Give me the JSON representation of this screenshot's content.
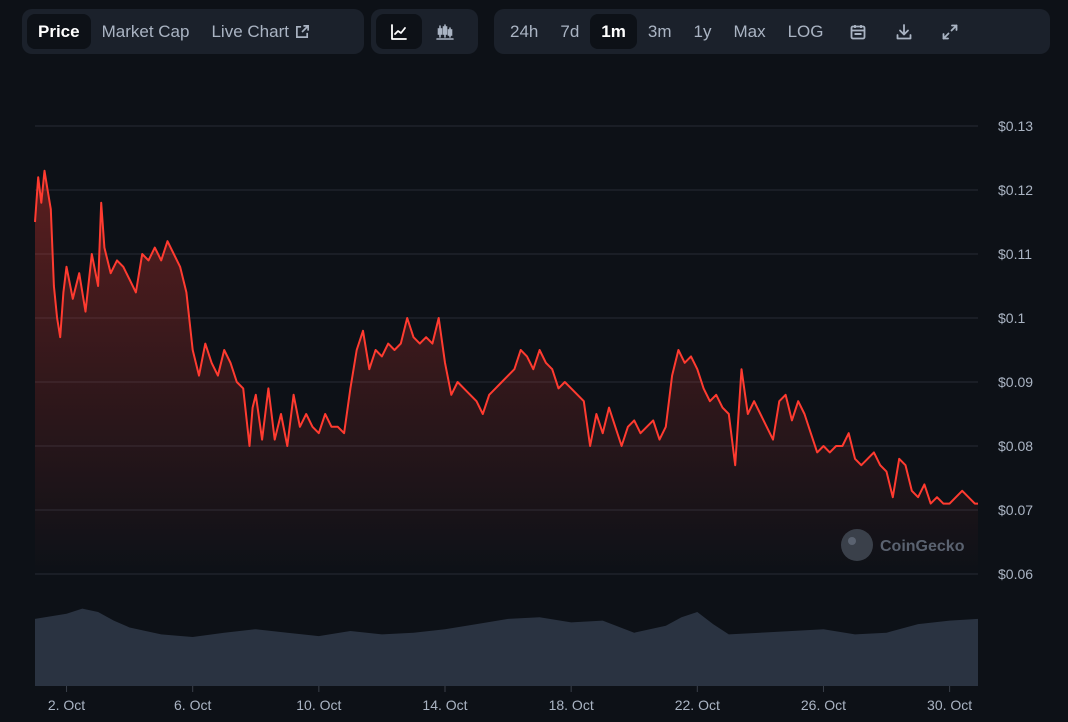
{
  "toolbar": {
    "metric_tabs": [
      {
        "label": "Price",
        "active": true
      },
      {
        "label": "Market Cap",
        "active": false
      },
      {
        "label": "Live Chart",
        "active": false
      }
    ],
    "chart_type_buttons": [
      {
        "icon": "line-chart-icon",
        "active": true
      },
      {
        "icon": "candlestick-chart-icon",
        "active": false
      }
    ],
    "range_tabs": [
      {
        "label": "24h",
        "active": false
      },
      {
        "label": "7d",
        "active": false
      },
      {
        "label": "1m",
        "active": true
      },
      {
        "label": "3m",
        "active": false
      },
      {
        "label": "1y",
        "active": false
      },
      {
        "label": "Max",
        "active": false
      },
      {
        "label": "LOG",
        "active": false
      }
    ],
    "action_icons": [
      "calendar-icon",
      "download-icon",
      "fullscreen-icon"
    ]
  },
  "watermark": "CoinGecko",
  "colors": {
    "line": "#ff3b30",
    "volume": "#2a3341",
    "background": "#0d1117",
    "grid": "#262c36"
  },
  "chart_data": {
    "type": "area",
    "x_unit": "date",
    "y_unit": "USD",
    "ylim": [
      0.06,
      0.13
    ],
    "yticks": [
      "$0.13",
      "$0.12",
      "$0.11",
      "$0.1",
      "$0.09",
      "$0.08",
      "$0.07",
      "$0.06"
    ],
    "ytick_values": [
      0.13,
      0.12,
      0.11,
      0.1,
      0.09,
      0.08,
      0.07,
      0.06
    ],
    "xticks": [
      "2. Oct",
      "6. Oct",
      "10. Oct",
      "14. Oct",
      "18. Oct",
      "22. Oct",
      "26. Oct",
      "30. Oct"
    ],
    "xtick_days": [
      2,
      6,
      10,
      14,
      18,
      22,
      26,
      30
    ],
    "xlim_days": [
      1.0,
      30.9
    ],
    "grid": true,
    "legend": "none",
    "series": [
      {
        "x": [
          1.0,
          1.1,
          1.2,
          1.3,
          1.4,
          1.5,
          1.6,
          1.7,
          1.8,
          1.9,
          2.0,
          2.2,
          2.4,
          2.6,
          2.8,
          3.0,
          3.1,
          3.2,
          3.4,
          3.6,
          3.8,
          4.0,
          4.2,
          4.4,
          4.6,
          4.8,
          5.0,
          5.2,
          5.4,
          5.6,
          5.8,
          6.0,
          6.2,
          6.4,
          6.6,
          6.8,
          7.0,
          7.2,
          7.4,
          7.6,
          7.8,
          7.9,
          8.0,
          8.2,
          8.4,
          8.6,
          8.8,
          9.0,
          9.2,
          9.4,
          9.6,
          9.8,
          10.0,
          10.2,
          10.4,
          10.6,
          10.8,
          11.0,
          11.2,
          11.4,
          11.6,
          11.8,
          12.0,
          12.2,
          12.4,
          12.6,
          12.8,
          13.0,
          13.2,
          13.4,
          13.6,
          13.8,
          14.0,
          14.2,
          14.4,
          14.6,
          14.8,
          15.0,
          15.2,
          15.4,
          15.6,
          15.8,
          16.0,
          16.2,
          16.4,
          16.6,
          16.8,
          17.0,
          17.2,
          17.4,
          17.6,
          17.8,
          18.0,
          18.2,
          18.4,
          18.6,
          18.8,
          19.0,
          19.2,
          19.4,
          19.6,
          19.8,
          20.0,
          20.2,
          20.4,
          20.6,
          20.8,
          21.0,
          21.2,
          21.4,
          21.6,
          21.8,
          22.0,
          22.2,
          22.4,
          22.6,
          22.8,
          23.0,
          23.2,
          23.4,
          23.6,
          23.8,
          24.0,
          24.2,
          24.4,
          24.6,
          24.8,
          25.0,
          25.2,
          25.4,
          25.6,
          25.8,
          26.0,
          26.2,
          26.4,
          26.6,
          26.8,
          27.0,
          27.2,
          27.4,
          27.6,
          27.8,
          28.0,
          28.2,
          28.4,
          28.6,
          28.8,
          29.0,
          29.2,
          29.4,
          29.6,
          29.8,
          30.0,
          30.2,
          30.4,
          30.6,
          30.8,
          30.9
        ],
        "y": [
          0.115,
          0.122,
          0.118,
          0.123,
          0.12,
          0.117,
          0.105,
          0.1,
          0.097,
          0.104,
          0.108,
          0.103,
          0.107,
          0.101,
          0.11,
          0.105,
          0.118,
          0.111,
          0.107,
          0.109,
          0.108,
          0.106,
          0.104,
          0.11,
          0.109,
          0.111,
          0.109,
          0.112,
          0.11,
          0.108,
          0.104,
          0.095,
          0.091,
          0.096,
          0.093,
          0.091,
          0.095,
          0.093,
          0.09,
          0.089,
          0.08,
          0.086,
          0.088,
          0.081,
          0.089,
          0.081,
          0.085,
          0.08,
          0.088,
          0.083,
          0.085,
          0.083,
          0.082,
          0.085,
          0.083,
          0.083,
          0.082,
          0.089,
          0.095,
          0.098,
          0.092,
          0.095,
          0.094,
          0.096,
          0.095,
          0.096,
          0.1,
          0.097,
          0.096,
          0.097,
          0.096,
          0.1,
          0.093,
          0.088,
          0.09,
          0.089,
          0.088,
          0.087,
          0.085,
          0.088,
          0.089,
          0.09,
          0.091,
          0.092,
          0.095,
          0.094,
          0.092,
          0.095,
          0.093,
          0.092,
          0.089,
          0.09,
          0.089,
          0.088,
          0.087,
          0.08,
          0.085,
          0.082,
          0.086,
          0.083,
          0.08,
          0.083,
          0.084,
          0.082,
          0.083,
          0.084,
          0.081,
          0.083,
          0.091,
          0.095,
          0.093,
          0.094,
          0.092,
          0.089,
          0.087,
          0.088,
          0.086,
          0.085,
          0.077,
          0.092,
          0.085,
          0.087,
          0.085,
          0.083,
          0.081,
          0.087,
          0.088,
          0.084,
          0.087,
          0.085,
          0.082,
          0.079,
          0.08,
          0.079,
          0.08,
          0.08,
          0.082,
          0.078,
          0.077,
          0.078,
          0.079,
          0.077,
          0.076,
          0.072,
          0.078,
          0.077,
          0.073,
          0.072,
          0.074,
          0.071,
          0.072,
          0.071,
          0.071,
          0.072,
          0.073,
          0.072,
          0.071,
          0.071
        ],
        "color": "#ff3b30"
      }
    ],
    "volume": {
      "x": [
        1.0,
        2.0,
        2.5,
        3.0,
        3.5,
        4.0,
        5.0,
        6.0,
        7.0,
        8.0,
        9.0,
        10.0,
        11.0,
        12.0,
        13.0,
        14.0,
        15.0,
        16.0,
        17.0,
        18.0,
        19.0,
        20.0,
        21.0,
        21.5,
        22.0,
        22.5,
        23.0,
        24.0,
        25.0,
        26.0,
        27.0,
        28.0,
        29.0,
        30.0,
        30.9
      ],
      "values": [
        0.78,
        0.84,
        0.9,
        0.86,
        0.76,
        0.68,
        0.6,
        0.57,
        0.62,
        0.66,
        0.62,
        0.58,
        0.64,
        0.6,
        0.62,
        0.66,
        0.72,
        0.78,
        0.8,
        0.74,
        0.76,
        0.62,
        0.7,
        0.8,
        0.86,
        0.72,
        0.6,
        0.62,
        0.64,
        0.66,
        0.6,
        0.62,
        0.72,
        0.76,
        0.78
      ]
    }
  }
}
